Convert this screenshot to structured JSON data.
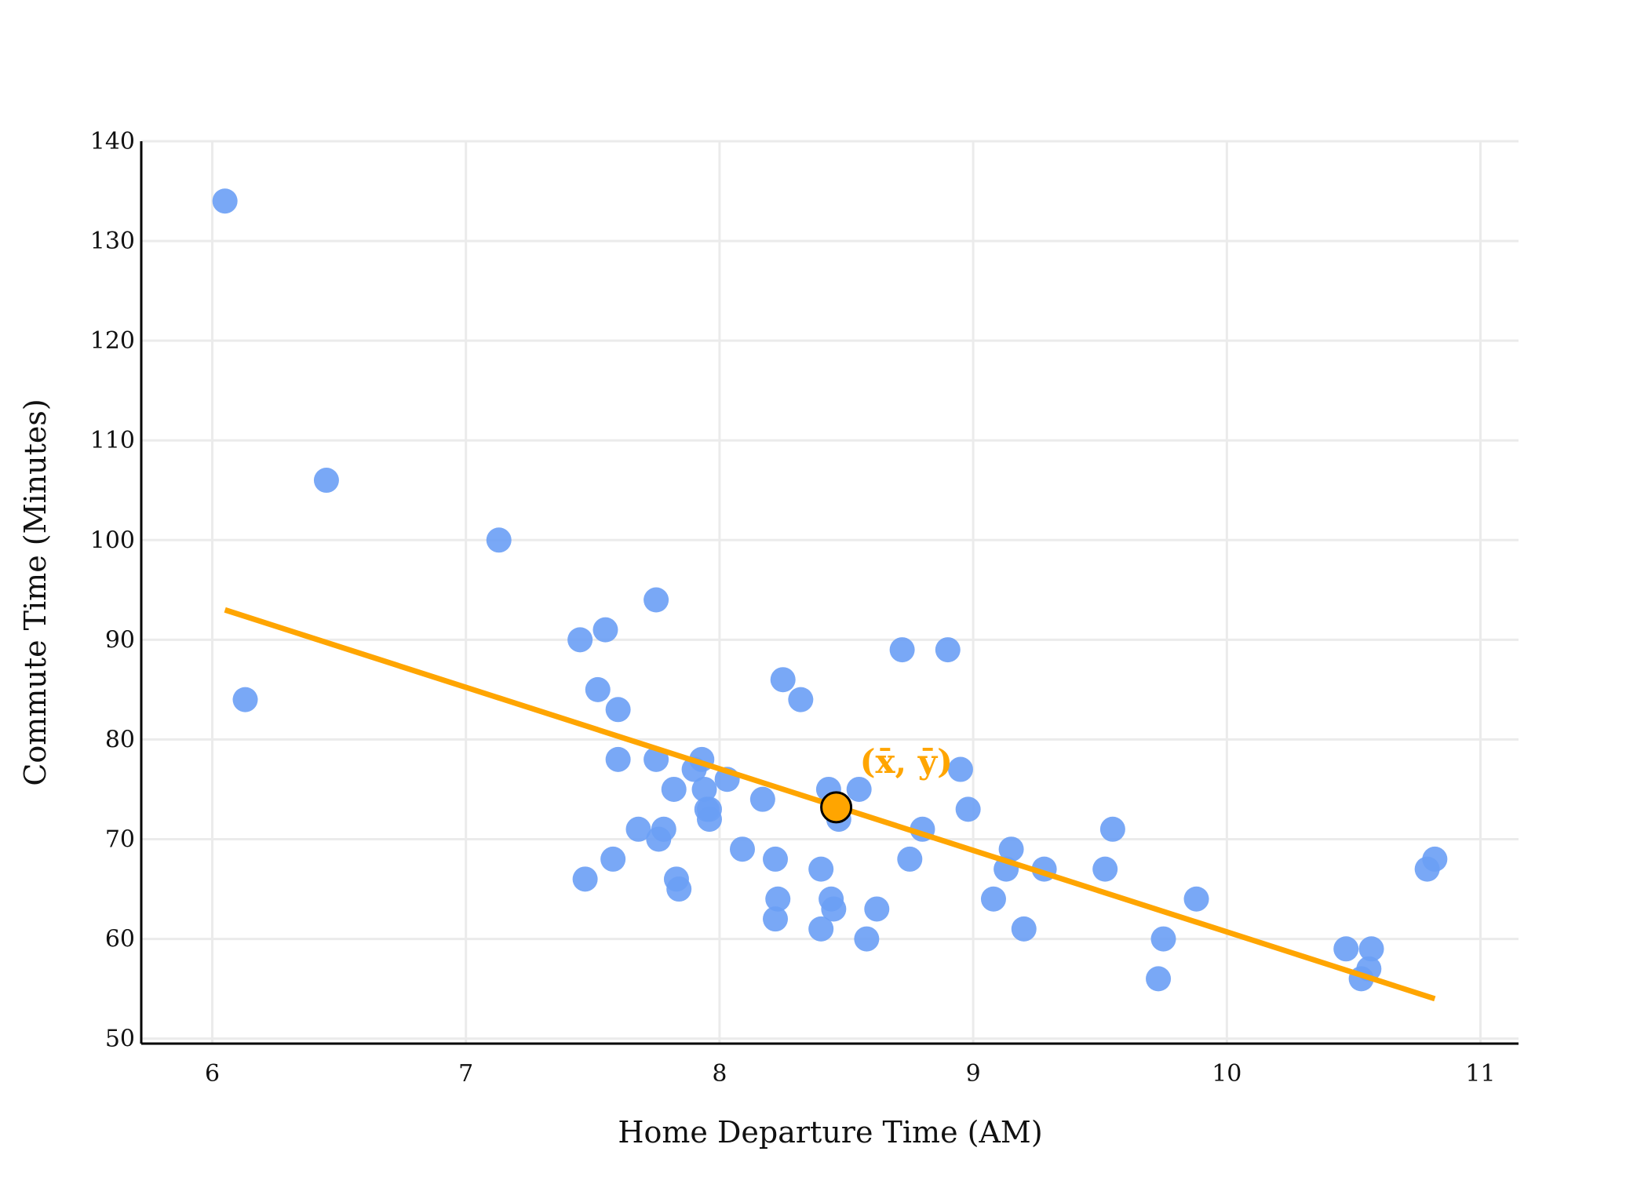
{
  "chart_data": {
    "type": "scatter",
    "title": "",
    "xlabel": "Home Departure Time (AM)",
    "ylabel": "Commute Time (Minutes)",
    "xlim": [
      5.72,
      11.15
    ],
    "ylim": [
      49.5,
      140
    ],
    "xticks": [
      6,
      7,
      8,
      9,
      10,
      11
    ],
    "yticks": [
      50,
      60,
      70,
      80,
      90,
      100,
      110,
      120,
      130,
      140
    ],
    "grid": true,
    "legend": "none",
    "colors": {
      "points": "#6a9ef5",
      "line": "#ffa500",
      "mean_point": "#ffa500",
      "mean_outline": "#000000",
      "grid": "#ebebeb",
      "axis": "#000000"
    },
    "series": [
      {
        "type": "scatter",
        "points": [
          [
            6.05,
            134
          ],
          [
            6.13,
            84
          ],
          [
            6.45,
            106
          ],
          [
            7.13,
            100
          ],
          [
            7.45,
            90
          ],
          [
            7.52,
            85
          ],
          [
            7.55,
            91
          ],
          [
            7.47,
            66
          ],
          [
            7.58,
            68
          ],
          [
            7.6,
            83
          ],
          [
            7.6,
            78
          ],
          [
            7.68,
            71
          ],
          [
            7.75,
            94
          ],
          [
            7.75,
            78
          ],
          [
            7.76,
            70
          ],
          [
            7.78,
            71
          ],
          [
            7.82,
            75
          ],
          [
            7.83,
            66
          ],
          [
            7.84,
            65
          ],
          [
            7.9,
            77
          ],
          [
            7.93,
            78
          ],
          [
            7.94,
            75
          ],
          [
            7.95,
            73
          ],
          [
            7.96,
            72
          ],
          [
            7.96,
            73
          ],
          [
            8.03,
            76
          ],
          [
            8.09,
            69
          ],
          [
            8.17,
            74
          ],
          [
            8.22,
            68
          ],
          [
            8.22,
            62
          ],
          [
            8.23,
            64
          ],
          [
            8.25,
            86
          ],
          [
            8.32,
            84
          ],
          [
            8.4,
            67
          ],
          [
            8.4,
            61
          ],
          [
            8.43,
            75
          ],
          [
            8.44,
            64
          ],
          [
            8.45,
            63
          ],
          [
            8.47,
            72
          ],
          [
            8.55,
            75
          ],
          [
            8.58,
            60
          ],
          [
            8.62,
            63
          ],
          [
            8.72,
            89
          ],
          [
            8.75,
            68
          ],
          [
            8.8,
            71
          ],
          [
            8.9,
            89
          ],
          [
            8.95,
            77
          ],
          [
            8.98,
            73
          ],
          [
            9.08,
            64
          ],
          [
            9.13,
            67
          ],
          [
            9.15,
            69
          ],
          [
            9.2,
            61
          ],
          [
            9.28,
            67
          ],
          [
            9.52,
            67
          ],
          [
            9.55,
            71
          ],
          [
            9.73,
            56
          ],
          [
            9.75,
            60
          ],
          [
            9.88,
            64
          ],
          [
            10.47,
            59
          ],
          [
            10.53,
            56
          ],
          [
            10.56,
            57
          ],
          [
            10.57,
            59
          ],
          [
            10.79,
            67
          ],
          [
            10.82,
            68
          ]
        ]
      },
      {
        "type": "line",
        "x": [
          6.05,
          10.82
        ],
        "y": [
          93,
          54
        ]
      }
    ],
    "annotations": [
      {
        "text": "(x̄, ȳ)",
        "x": 8.46,
        "y": 73.2
      }
    ]
  }
}
